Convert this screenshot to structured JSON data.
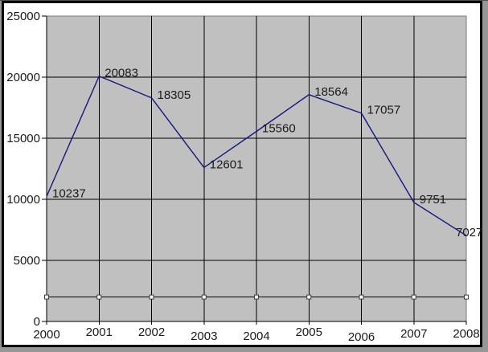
{
  "window": {
    "outer_background": "#969696",
    "canvas_background": "#ffffff",
    "frame_color": "#000000"
  },
  "chart_data": {
    "type": "line",
    "title": "",
    "xlabel": "",
    "ylabel": "",
    "categories": [
      "2000",
      "2001",
      "2002",
      "2003",
      "2004",
      "2005",
      "2006",
      "2007",
      "2008"
    ],
    "series": [
      {
        "name": "main-values",
        "color": "#151580",
        "marker": "none",
        "show_labels": true,
        "values": [
          10237,
          20083,
          18305,
          12601,
          15560,
          18564,
          17057,
          9751,
          7027
        ]
      },
      {
        "name": "constant-marker-line",
        "color": "#000000",
        "marker": "white-square",
        "show_labels": false,
        "values": [
          2000,
          2000,
          2000,
          2000,
          2000,
          2000,
          2000,
          2000,
          2000
        ]
      }
    ],
    "data_labels": [
      "10237",
      "20083",
      "18305",
      "12601",
      "15560",
      "18564",
      "17057",
      "9751",
      "7027"
    ],
    "ylim": [
      0,
      25000
    ],
    "y_ticks": [
      "0",
      "5000",
      "10000",
      "15000",
      "20000",
      "25000"
    ],
    "grid": true,
    "legend": false,
    "plot_background": "#c0c0c0",
    "plot_border_color": "#7a7a7a",
    "grid_color": "#000000",
    "axis_color": "#000000",
    "text_color": "#1a1a1a"
  }
}
